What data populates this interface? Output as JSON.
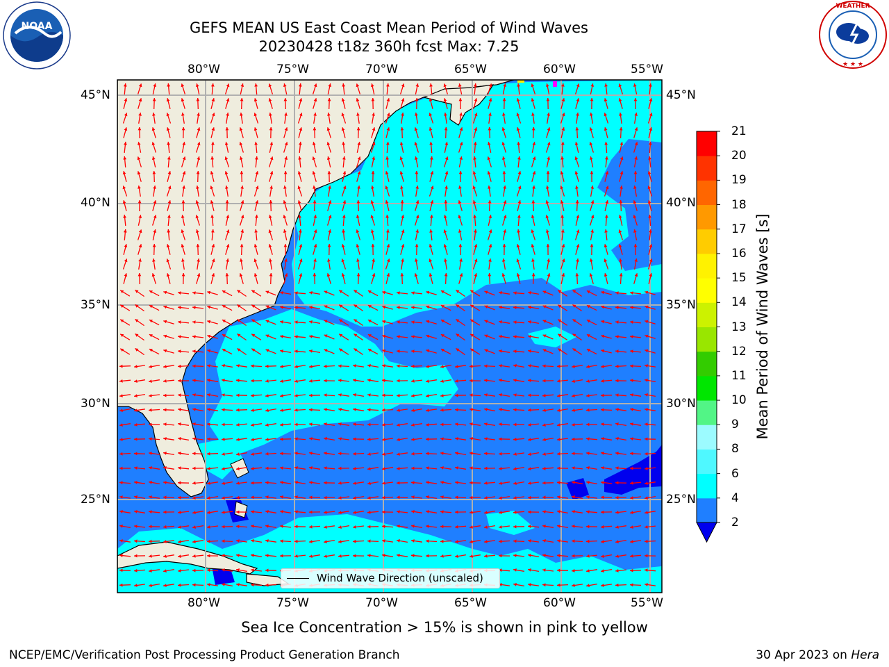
{
  "title": {
    "line1": "GEFS MEAN US East Coast Mean Period of Wind Waves",
    "line2": "20230428 t18z 360h fcst   Max: 7.25"
  },
  "map": {
    "lon_labels": [
      "80°W",
      "75°W",
      "70°W",
      "65°W",
      "60°W",
      "55°W"
    ],
    "lat_labels": [
      "45°N",
      "40°N",
      "35°N",
      "30°N",
      "25°N"
    ],
    "legend_text": "Wind Wave Direction (unscaled)",
    "land_color": "#efedde",
    "field_colors": {
      "deep_blue": "#0000ee",
      "blue": "#1f7fff",
      "cyan": "#00ffff"
    },
    "arrow_color": "#ff0000"
  },
  "colorbar": {
    "title": "Mean Period of Wind Waves [s]",
    "tick_labels": [
      "2",
      "4",
      "6",
      "8",
      "9",
      "10",
      "11",
      "12",
      "13",
      "14",
      "15",
      "16",
      "17",
      "18",
      "19",
      "20",
      "21"
    ],
    "bin_colors": [
      "#1f7fff",
      "#00ffff",
      "#4ff8ff",
      "#9cfbff",
      "#52f586",
      "#00e600",
      "#33cc00",
      "#99e600",
      "#ccf200",
      "#ffff00",
      "#fff200",
      "#ffcc00",
      "#ff9900",
      "#ff6600",
      "#ff3300",
      "#ff0000"
    ],
    "extend_low_color": "#0000ee"
  },
  "footnote": "Sea Ice Concentration > 15% is shown in pink to yellow",
  "footer": {
    "left": "NCEP/EMC/Verification Post Processing Product Generation Branch",
    "right_prefix": "30 Apr 2023 on ",
    "right_italic": "Hera"
  },
  "logos": {
    "noaa_text": "NOAA",
    "nws_ring_text": "NATIONAL WEATHER SERVICE"
  }
}
